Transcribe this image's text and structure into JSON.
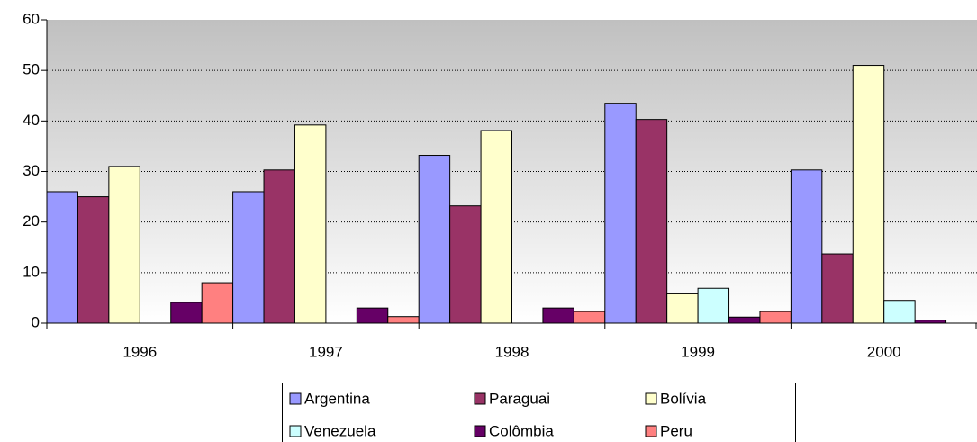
{
  "chart_data": {
    "type": "bar",
    "categories": [
      "1996",
      "1997",
      "1998",
      "1999",
      "2000"
    ],
    "series": [
      {
        "name": "Argentina",
        "color": "#9999ff",
        "values": [
          26,
          26,
          33.2,
          43.5,
          30.3
        ]
      },
      {
        "name": "Paraguai",
        "color": "#993366",
        "values": [
          25,
          30.3,
          23.2,
          40.3,
          13.7
        ]
      },
      {
        "name": "Bolívia",
        "color": "#ffffcc",
        "values": [
          31,
          39.2,
          38.1,
          5.8,
          51
        ]
      },
      {
        "name": "Venezuela",
        "color": "#ccffff",
        "values": [
          0,
          0,
          0,
          6.9,
          4.5
        ]
      },
      {
        "name": "Colômbia",
        "color": "#660066",
        "values": [
          4.1,
          3,
          3,
          1.2,
          0.6
        ]
      },
      {
        "name": "Peru",
        "color": "#ff8080",
        "values": [
          8,
          1.3,
          2.3,
          2.3,
          0
        ]
      }
    ],
    "ylim": [
      0,
      60
    ],
    "yticks": [
      0,
      10,
      20,
      30,
      40,
      50,
      60
    ],
    "grid": true
  }
}
